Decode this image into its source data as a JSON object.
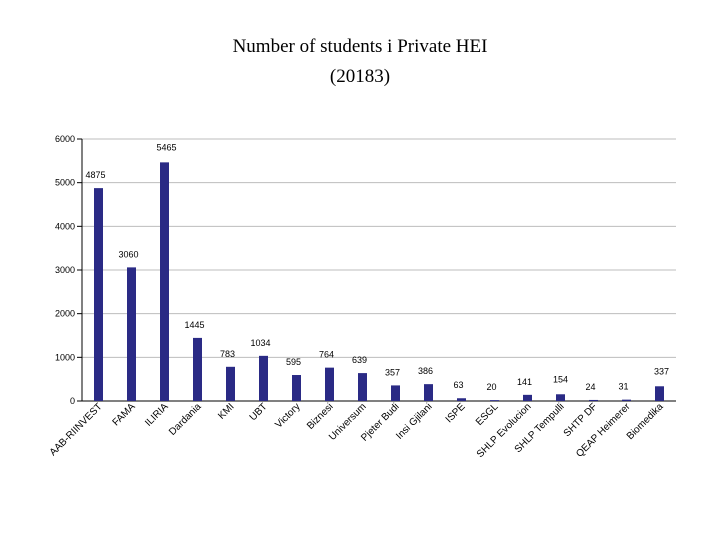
{
  "chart_data": {
    "type": "bar",
    "title": "Number of students i Private HEI",
    "subtitle": "(20183)",
    "ylim": [
      0,
      6000
    ],
    "yticks": [
      0,
      1000,
      2000,
      3000,
      4000,
      5000,
      6000
    ],
    "grid": true,
    "bar_color": "#2a2a85",
    "categories": [
      "AAB-RIINVEST",
      "FAMA",
      "ILIRIA",
      "Dardania",
      "KMI",
      "UBT",
      "Victory",
      "Biznesi",
      "Universum",
      "Pjeter Budi",
      "Insi Gjilani",
      "ISPE",
      "ESGL",
      "SHLP Evolucion",
      "SHLP Tempulli",
      "SHTP DF",
      "QEAP Heimerer",
      "Biomedika"
    ],
    "values": [
      4875,
      3060,
      5465,
      1445,
      783,
      1034,
      595,
      764,
      639,
      357,
      386,
      63,
      20,
      141,
      154,
      24,
      31,
      337
    ]
  }
}
